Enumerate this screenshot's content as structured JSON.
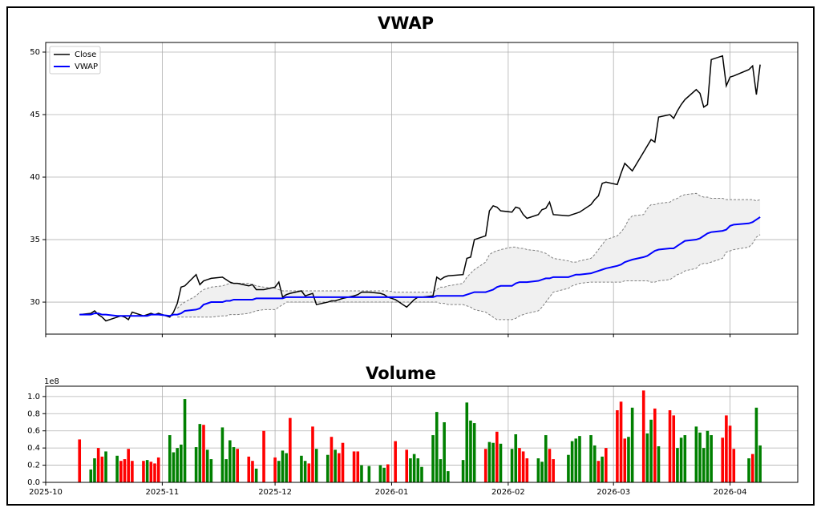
{
  "chart_data": [
    {
      "type": "line",
      "title": "VWAP",
      "x": [
        "2025-10-10",
        "2025-10-13",
        "2025-10-14",
        "2025-10-15",
        "2025-10-16",
        "2025-10-17",
        "2025-10-20",
        "2025-10-21",
        "2025-10-22",
        "2025-10-23",
        "2025-10-24",
        "2025-10-27",
        "2025-10-28",
        "2025-10-29",
        "2025-10-30",
        "2025-10-31",
        "2025-11-03",
        "2025-11-04",
        "2025-11-05",
        "2025-11-06",
        "2025-11-07",
        "2025-11-10",
        "2025-11-11",
        "2025-11-12",
        "2025-11-13",
        "2025-11-14",
        "2025-11-17",
        "2025-11-18",
        "2025-11-19",
        "2025-11-20",
        "2025-11-21",
        "2025-11-24",
        "2025-11-25",
        "2025-11-26",
        "2025-11-28",
        "2025-12-01",
        "2025-12-02",
        "2025-12-03",
        "2025-12-04",
        "2025-12-05",
        "2025-12-08",
        "2025-12-09",
        "2025-12-10",
        "2025-12-11",
        "2025-12-12",
        "2025-12-15",
        "2025-12-16",
        "2025-12-17",
        "2025-12-18",
        "2025-12-19",
        "2025-12-22",
        "2025-12-23",
        "2025-12-24",
        "2025-12-26",
        "2025-12-29",
        "2025-12-30",
        "2025-12-31",
        "2026-01-02",
        "2026-01-05",
        "2026-01-06",
        "2026-01-07",
        "2026-01-08",
        "2026-01-09",
        "2026-01-12",
        "2026-01-13",
        "2026-01-14",
        "2026-01-15",
        "2026-01-16",
        "2026-01-20",
        "2026-01-21",
        "2026-01-22",
        "2026-01-23",
        "2026-01-26",
        "2026-01-27",
        "2026-01-28",
        "2026-01-29",
        "2026-01-30",
        "2026-02-02",
        "2026-02-03",
        "2026-02-04",
        "2026-02-05",
        "2026-02-06",
        "2026-02-09",
        "2026-02-10",
        "2026-02-11",
        "2026-02-12",
        "2026-02-13",
        "2026-02-17",
        "2026-02-18",
        "2026-02-19",
        "2026-02-20",
        "2026-02-23",
        "2026-02-24",
        "2026-02-25",
        "2026-02-26",
        "2026-02-27",
        "2026-03-02",
        "2026-03-03",
        "2026-03-04",
        "2026-03-05",
        "2026-03-06",
        "2026-03-09",
        "2026-03-10",
        "2026-03-11",
        "2026-03-12",
        "2026-03-13",
        "2026-03-16",
        "2026-03-17",
        "2026-03-18",
        "2026-03-19",
        "2026-03-20",
        "2026-03-23",
        "2026-03-24",
        "2026-03-25",
        "2026-03-26",
        "2026-03-27",
        "2026-03-30",
        "2026-03-31",
        "2026-04-01",
        "2026-04-02",
        "2026-04-06",
        "2026-04-07",
        "2026-04-08",
        "2026-04-09"
      ],
      "series": [
        {
          "name": "Close",
          "color": "#000000",
          "values": [
            29.0,
            29.1,
            29.3,
            29.0,
            28.8,
            28.5,
            28.8,
            28.9,
            28.8,
            28.6,
            29.2,
            28.9,
            29.0,
            29.1,
            29.0,
            29.1,
            28.8,
            29.2,
            29.9,
            31.2,
            31.3,
            32.2,
            31.4,
            31.7,
            31.8,
            31.9,
            32.0,
            31.8,
            31.6,
            31.5,
            31.5,
            31.3,
            31.4,
            31.0,
            31.0,
            31.2,
            31.6,
            30.4,
            30.6,
            30.7,
            30.9,
            30.5,
            30.6,
            30.7,
            29.8,
            30.0,
            30.1,
            30.1,
            30.2,
            30.3,
            30.5,
            30.6,
            30.8,
            30.8,
            30.7,
            30.6,
            30.4,
            30.2,
            29.6,
            29.9,
            30.2,
            30.4,
            30.4,
            30.5,
            32.0,
            31.8,
            32.0,
            32.1,
            32.2,
            33.5,
            33.6,
            35.0,
            35.3,
            37.3,
            37.7,
            37.6,
            37.3,
            37.2,
            37.6,
            37.5,
            37.0,
            36.7,
            37.0,
            37.4,
            37.5,
            38.0,
            37.0,
            36.9,
            37.0,
            37.1,
            37.2,
            37.8,
            38.2,
            38.5,
            39.5,
            39.6,
            39.4,
            40.3,
            41.1,
            40.8,
            40.5,
            42.0,
            42.5,
            43.0,
            42.8,
            44.8,
            45.0,
            44.7,
            45.3,
            45.8,
            46.2,
            47.0,
            46.7,
            45.6,
            45.8,
            49.4,
            49.7,
            47.3,
            48.0,
            48.1,
            48.6,
            48.9,
            46.6,
            49.0
          ]
        },
        {
          "name": "VWAP",
          "color": "#0000ff",
          "values": [
            29.0,
            29.0,
            29.1,
            29.1,
            29.0,
            29.0,
            28.9,
            28.9,
            28.9,
            28.9,
            28.9,
            28.9,
            28.9,
            29.0,
            29.0,
            29.0,
            28.9,
            29.0,
            29.0,
            29.1,
            29.3,
            29.4,
            29.5,
            29.8,
            29.9,
            30.0,
            30.0,
            30.1,
            30.1,
            30.2,
            30.2,
            30.2,
            30.2,
            30.3,
            30.3,
            30.3,
            30.3,
            30.3,
            30.4,
            30.4,
            30.4,
            30.4,
            30.4,
            30.4,
            30.4,
            30.4,
            30.4,
            30.4,
            30.4,
            30.4,
            30.4,
            30.4,
            30.4,
            30.4,
            30.4,
            30.4,
            30.4,
            30.4,
            30.4,
            30.4,
            30.4,
            30.4,
            30.4,
            30.4,
            30.5,
            30.5,
            30.5,
            30.5,
            30.5,
            30.6,
            30.7,
            30.8,
            30.8,
            30.9,
            31.0,
            31.2,
            31.3,
            31.3,
            31.5,
            31.6,
            31.6,
            31.6,
            31.7,
            31.8,
            31.9,
            31.9,
            32.0,
            32.0,
            32.1,
            32.2,
            32.2,
            32.3,
            32.4,
            32.5,
            32.6,
            32.7,
            32.9,
            33.0,
            33.2,
            33.3,
            33.4,
            33.6,
            33.7,
            33.9,
            34.1,
            34.2,
            34.3,
            34.3,
            34.5,
            34.7,
            34.9,
            35.0,
            35.1,
            35.3,
            35.5,
            35.6,
            35.7,
            35.8,
            36.1,
            36.2,
            36.3,
            36.4,
            36.6,
            36.8
          ]
        }
      ],
      "band": {
        "line_color": "#808080",
        "fill_color": "#f0f0f0",
        "upper": [
          null,
          null,
          null,
          null,
          null,
          null,
          null,
          null,
          null,
          null,
          null,
          null,
          null,
          null,
          null,
          null,
          null,
          null,
          29.5,
          29.8,
          30.0,
          30.5,
          30.8,
          31.0,
          31.1,
          31.2,
          31.3,
          31.4,
          31.5,
          31.5,
          31.5,
          31.5,
          31.4,
          31.3,
          31.2,
          31.1,
          31.0,
          30.9,
          30.9,
          30.9,
          30.9,
          30.9,
          30.9,
          30.9,
          30.9,
          30.9,
          30.9,
          30.9,
          30.9,
          30.9,
          30.9,
          30.9,
          30.9,
          30.9,
          30.9,
          30.9,
          30.9,
          30.8,
          30.8,
          30.8,
          30.8,
          30.8,
          30.8,
          30.8,
          31.0,
          31.2,
          31.2,
          31.3,
          31.5,
          32.0,
          32.3,
          32.6,
          33.2,
          33.8,
          34.0,
          34.1,
          34.2,
          34.4,
          34.4,
          34.3,
          34.3,
          34.2,
          34.1,
          34.0,
          33.9,
          33.7,
          33.5,
          33.3,
          33.2,
          33.2,
          33.3,
          33.5,
          33.8,
          34.2,
          34.6,
          35.0,
          35.3,
          35.6,
          36.0,
          36.6,
          36.9,
          37.0,
          37.5,
          37.8,
          37.8,
          37.9,
          38.0,
          38.2,
          38.3,
          38.5,
          38.6,
          38.7,
          38.5,
          38.4,
          38.4,
          38.3,
          38.3,
          38.2,
          38.2,
          38.2,
          38.2,
          38.2,
          38.1,
          38.2
        ],
        "lower": [
          null,
          null,
          null,
          null,
          null,
          null,
          null,
          null,
          null,
          null,
          null,
          null,
          null,
          null,
          null,
          null,
          null,
          null,
          28.8,
          28.8,
          28.8,
          28.8,
          28.8,
          28.8,
          28.8,
          28.8,
          28.9,
          28.9,
          29.0,
          29.0,
          29.0,
          29.1,
          29.2,
          29.3,
          29.4,
          29.4,
          29.6,
          29.8,
          30.0,
          30.0,
          30.0,
          30.0,
          30.0,
          30.0,
          30.0,
          30.0,
          30.0,
          30.0,
          30.0,
          30.0,
          30.0,
          30.0,
          30.0,
          30.0,
          30.0,
          30.0,
          30.0,
          30.0,
          30.0,
          30.0,
          30.0,
          30.0,
          30.0,
          30.0,
          30.0,
          29.9,
          29.9,
          29.8,
          29.8,
          29.7,
          29.6,
          29.4,
          29.2,
          29.0,
          28.8,
          28.6,
          28.6,
          28.6,
          28.7,
          28.9,
          29.0,
          29.1,
          29.3,
          29.6,
          30.0,
          30.4,
          30.8,
          31.1,
          31.3,
          31.4,
          31.5,
          31.6,
          31.6,
          31.6,
          31.6,
          31.6,
          31.6,
          31.6,
          31.7,
          31.7,
          31.7,
          31.7,
          31.7,
          31.6,
          31.6,
          31.7,
          31.8,
          32.0,
          32.2,
          32.3,
          32.5,
          32.7,
          33.0,
          33.1,
          33.1,
          33.2,
          33.5,
          34.0,
          34.1,
          34.2,
          34.4,
          34.7,
          35.2,
          35.4
        ]
      },
      "xlim": [
        "2025-10-01",
        "2026-04-19"
      ],
      "xticks": [
        "2025-10-01",
        "2025-11-01",
        "2025-12-01",
        "2026-01-01",
        "2026-02-01",
        "2026-03-01",
        "2026-04-01"
      ],
      "ylim": [
        27.44,
        50.77
      ],
      "yticks": [
        30,
        35,
        40,
        45,
        50
      ],
      "grid": true,
      "legend": "upper left"
    },
    {
      "type": "bar",
      "title": "Volume",
      "offset_label": "1e8",
      "x": [
        "2025-10-10",
        "2025-10-13",
        "2025-10-14",
        "2025-10-15",
        "2025-10-16",
        "2025-10-17",
        "2025-10-20",
        "2025-10-21",
        "2025-10-22",
        "2025-10-23",
        "2025-10-24",
        "2025-10-27",
        "2025-10-28",
        "2025-10-29",
        "2025-10-30",
        "2025-10-31",
        "2025-11-03",
        "2025-11-04",
        "2025-11-05",
        "2025-11-06",
        "2025-11-07",
        "2025-11-10",
        "2025-11-11",
        "2025-11-12",
        "2025-11-13",
        "2025-11-14",
        "2025-11-17",
        "2025-11-18",
        "2025-11-19",
        "2025-11-20",
        "2025-11-21",
        "2025-11-24",
        "2025-11-25",
        "2025-11-26",
        "2025-11-28",
        "2025-12-01",
        "2025-12-02",
        "2025-12-03",
        "2025-12-04",
        "2025-12-05",
        "2025-12-08",
        "2025-12-09",
        "2025-12-10",
        "2025-12-11",
        "2025-12-12",
        "2025-12-15",
        "2025-12-16",
        "2025-12-17",
        "2025-12-18",
        "2025-12-19",
        "2025-12-22",
        "2025-12-23",
        "2025-12-24",
        "2025-12-26",
        "2025-12-29",
        "2025-12-30",
        "2025-12-31",
        "2026-01-02",
        "2026-01-05",
        "2026-01-06",
        "2026-01-07",
        "2026-01-08",
        "2026-01-09",
        "2026-01-12",
        "2026-01-13",
        "2026-01-14",
        "2026-01-15",
        "2026-01-16",
        "2026-01-20",
        "2026-01-21",
        "2026-01-22",
        "2026-01-23",
        "2026-01-26",
        "2026-01-27",
        "2026-01-28",
        "2026-01-29",
        "2026-01-30",
        "2026-02-02",
        "2026-02-03",
        "2026-02-04",
        "2026-02-05",
        "2026-02-06",
        "2026-02-09",
        "2026-02-10",
        "2026-02-11",
        "2026-02-12",
        "2026-02-13",
        "2026-02-17",
        "2026-02-18",
        "2026-02-19",
        "2026-02-20",
        "2026-02-23",
        "2026-02-24",
        "2026-02-25",
        "2026-02-26",
        "2026-02-27",
        "2026-03-02",
        "2026-03-03",
        "2026-03-04",
        "2026-03-05",
        "2026-03-06",
        "2026-03-09",
        "2026-03-10",
        "2026-03-11",
        "2026-03-12",
        "2026-03-13",
        "2026-03-16",
        "2026-03-17",
        "2026-03-18",
        "2026-03-19",
        "2026-03-20",
        "2026-03-23",
        "2026-03-24",
        "2026-03-25",
        "2026-03-26",
        "2026-03-27",
        "2026-03-30",
        "2026-03-31",
        "2026-04-01",
        "2026-04-02",
        "2026-04-06",
        "2026-04-07",
        "2026-04-08",
        "2026-04-09"
      ],
      "values": [
        0.5,
        0.15,
        0.28,
        0.4,
        0.3,
        0.36,
        0.31,
        0.25,
        0.27,
        0.39,
        0.25,
        0.25,
        0.26,
        0.24,
        0.22,
        0.29,
        0.55,
        0.35,
        0.4,
        0.44,
        0.97,
        0.41,
        0.68,
        0.67,
        0.38,
        0.27,
        0.64,
        0.27,
        0.49,
        0.41,
        0.39,
        0.3,
        0.25,
        0.16,
        0.6,
        0.29,
        0.25,
        0.37,
        0.34,
        0.75,
        0.31,
        0.25,
        0.22,
        0.65,
        0.39,
        0.32,
        0.53,
        0.38,
        0.34,
        0.46,
        0.36,
        0.36,
        0.2,
        0.19,
        0.2,
        0.17,
        0.21,
        0.48,
        0.38,
        0.28,
        0.33,
        0.28,
        0.18,
        0.55,
        0.82,
        0.27,
        0.7,
        0.13,
        0.26,
        0.93,
        0.72,
        0.69,
        0.39,
        0.47,
        0.46,
        0.59,
        0.45,
        0.39,
        0.56,
        0.4,
        0.36,
        0.28,
        0.28,
        0.24,
        0.55,
        0.39,
        0.27,
        0.32,
        0.48,
        0.51,
        0.54,
        0.55,
        0.43,
        0.25,
        0.3,
        0.4,
        0.84,
        0.94,
        0.51,
        0.53,
        0.87,
        1.07,
        0.57,
        0.73,
        0.86,
        0.42,
        0.84,
        0.78,
        0.4,
        0.52,
        0.55,
        0.65,
        0.58,
        0.4,
        0.6,
        0.55,
        0.52,
        0.78,
        0.66,
        0.39,
        0.28,
        0.33,
        0.87,
        0.43
      ],
      "colors": [
        "red",
        "green",
        "green",
        "red",
        "red",
        "green",
        "green",
        "red",
        "red",
        "red",
        "red",
        "red",
        "green",
        "red",
        "red",
        "red",
        "green",
        "green",
        "green",
        "green",
        "green",
        "green",
        "green",
        "red",
        "green",
        "green",
        "green",
        "green",
        "green",
        "green",
        "red",
        "red",
        "red",
        "green",
        "red",
        "red",
        "green",
        "green",
        "green",
        "red",
        "green",
        "green",
        "red",
        "red",
        "green",
        "green",
        "red",
        "green",
        "red",
        "red",
        "red",
        "red",
        "green",
        "green",
        "green",
        "green",
        "red",
        "red",
        "red",
        "green",
        "green",
        "green",
        "green",
        "green",
        "green",
        "green",
        "green",
        "green",
        "green",
        "green",
        "green",
        "green",
        "red",
        "green",
        "green",
        "red",
        "green",
        "green",
        "green",
        "red",
        "red",
        "red",
        "green",
        "green",
        "green",
        "red",
        "red",
        "green",
        "green",
        "green",
        "green",
        "green",
        "green",
        "red",
        "green",
        "red",
        "red",
        "red",
        "red",
        "green",
        "green",
        "red",
        "green",
        "green",
        "red",
        "green",
        "red",
        "red",
        "green",
        "green",
        "green",
        "green",
        "green",
        "green",
        "green",
        "green",
        "red",
        "red",
        "red",
        "red",
        "green",
        "red",
        "green",
        "green"
      ],
      "xlim": [
        "2025-10-01",
        "2026-04-19"
      ],
      "xticks": [
        {
          "value": "2025-10-01",
          "label": "2025-10"
        },
        {
          "value": "2025-11-01",
          "label": "2025-11"
        },
        {
          "value": "2025-12-01",
          "label": "2025-12"
        },
        {
          "value": "2026-01-01",
          "label": "2026-01"
        },
        {
          "value": "2026-02-01",
          "label": "2026-02"
        },
        {
          "value": "2026-03-01",
          "label": "2026-03"
        },
        {
          "value": "2026-04-01",
          "label": "2026-04"
        }
      ],
      "ylim": [
        0,
        1.12
      ],
      "yticks": [
        {
          "value": 0,
          "label": "0.0"
        },
        0.2,
        0.4,
        0.6,
        0.8,
        {
          "value": 1,
          "label": "1.0"
        }
      ],
      "grid": true
    }
  ]
}
